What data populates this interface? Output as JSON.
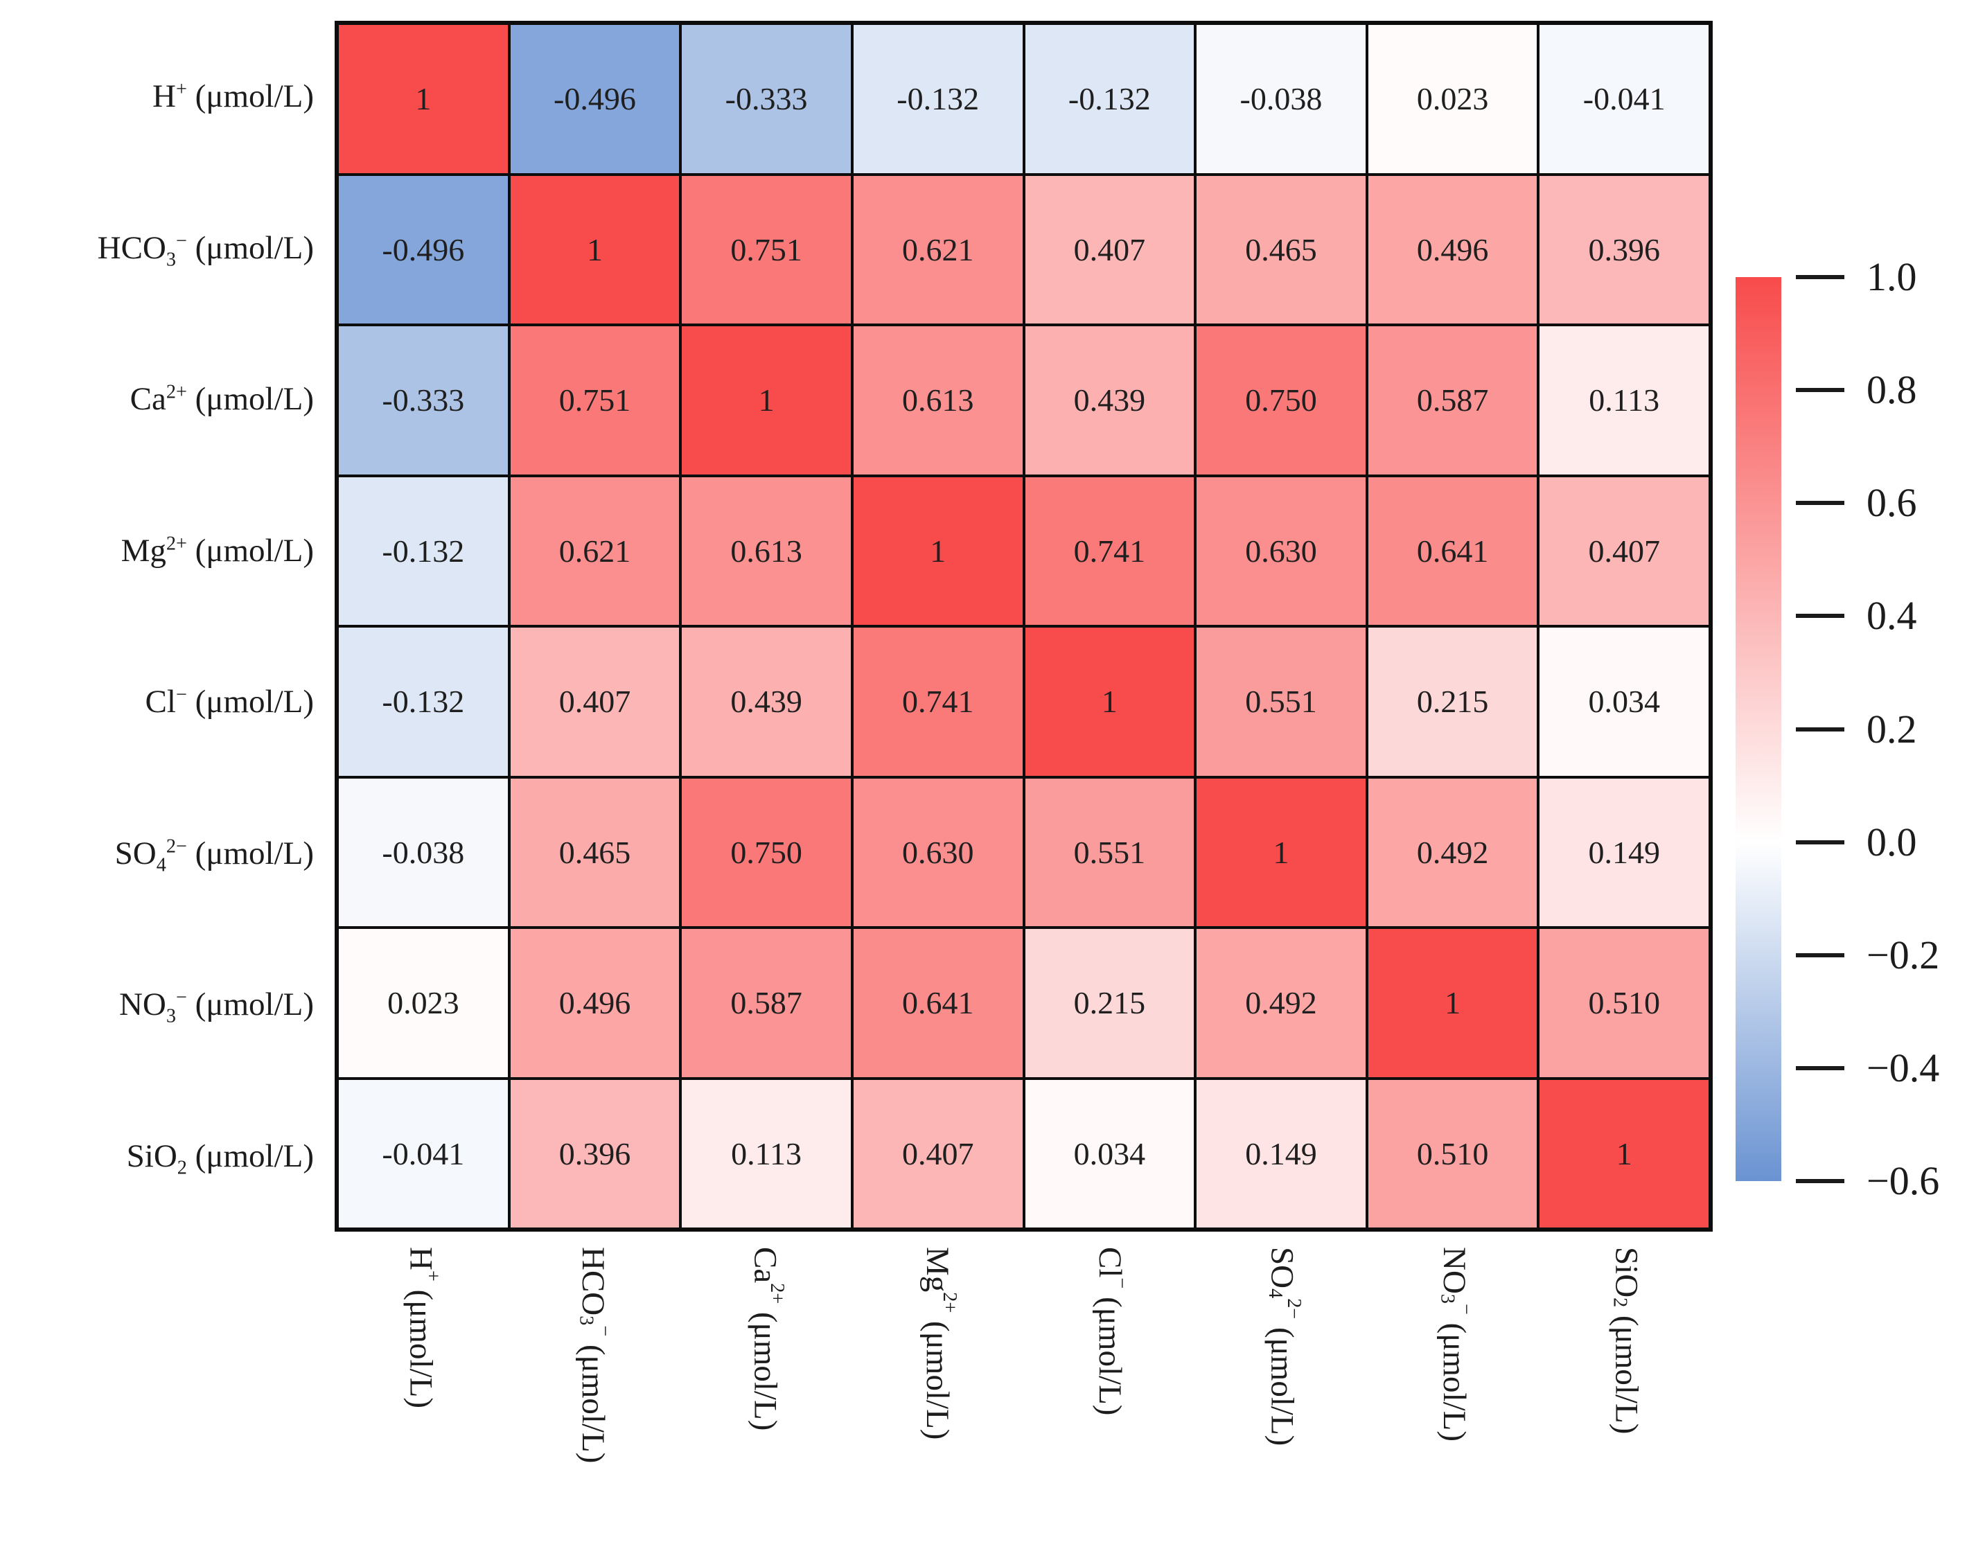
{
  "figure": {
    "kind": "correlation-heatmap",
    "background": "#ffffff",
    "grid_line_color": "#0d0d0d",
    "text_color": "#1c1c1c"
  },
  "chart_data": {
    "type": "heatmap",
    "title": "",
    "xlabel": "",
    "ylabel": "",
    "x_tick_rotation_deg": 90,
    "categories_plain": [
      "H+ (μmol/L)",
      "HCO3− (μmol/L)",
      "Ca2+ (μmol/L)",
      "Mg2+ (μmol/L)",
      "Cl− (μmol/L)",
      "SO42− (μmol/L)",
      "NO3− (μmol/L)",
      "SiO2 (μmol/L)"
    ],
    "categories_rich": [
      [
        {
          "t": "H"
        },
        {
          "t": "+",
          "sup": true
        },
        {
          "t": " (μmol/L)"
        }
      ],
      [
        {
          "t": "HCO"
        },
        {
          "t": "3",
          "sub": true
        },
        {
          "t": "−",
          "sup": true
        },
        {
          "t": " (μmol/L)"
        }
      ],
      [
        {
          "t": "Ca"
        },
        {
          "t": "2+",
          "sup": true
        },
        {
          "t": " (μmol/L)"
        }
      ],
      [
        {
          "t": "Mg"
        },
        {
          "t": "2+",
          "sup": true
        },
        {
          "t": " (μmol/L)"
        }
      ],
      [
        {
          "t": "Cl"
        },
        {
          "t": "−",
          "sup": true
        },
        {
          "t": " (μmol/L)"
        }
      ],
      [
        {
          "t": "SO"
        },
        {
          "t": "4",
          "sub": true
        },
        {
          "t": "2−",
          "sup": true
        },
        {
          "t": " (μmol/L)"
        }
      ],
      [
        {
          "t": "NO"
        },
        {
          "t": "3",
          "sub": true
        },
        {
          "t": "−",
          "sup": true
        },
        {
          "t": " (μmol/L)"
        }
      ],
      [
        {
          "t": "SiO"
        },
        {
          "t": "2",
          "sub": true
        },
        {
          "t": " (μmol/L)"
        }
      ]
    ],
    "matrix_display": [
      [
        "1",
        "-0.496",
        "-0.333",
        "-0.132",
        "-0.132",
        "-0.038",
        "0.023",
        "-0.041"
      ],
      [
        "-0.496",
        "1",
        "0.751",
        "0.621",
        "0.407",
        "0.465",
        "0.496",
        "0.396"
      ],
      [
        "-0.333",
        "0.751",
        "1",
        "0.613",
        "0.439",
        "0.750",
        "0.587",
        "0.113"
      ],
      [
        "-0.132",
        "0.621",
        "0.613",
        "1",
        "0.741",
        "0.630",
        "0.641",
        "0.407"
      ],
      [
        "-0.132",
        "0.407",
        "0.439",
        "0.741",
        "1",
        "0.551",
        "0.215",
        "0.034"
      ],
      [
        "-0.038",
        "0.465",
        "0.750",
        "0.630",
        "0.551",
        "1",
        "0.492",
        "0.149"
      ],
      [
        "0.023",
        "0.496",
        "0.587",
        "0.641",
        "0.215",
        "0.492",
        "1",
        "0.510"
      ],
      [
        "-0.041",
        "0.396",
        "0.113",
        "0.407",
        "0.034",
        "0.149",
        "0.510",
        "1"
      ]
    ],
    "values": [
      [
        1,
        -0.496,
        -0.333,
        -0.132,
        -0.132,
        -0.038,
        0.023,
        -0.041
      ],
      [
        -0.496,
        1,
        0.751,
        0.621,
        0.407,
        0.465,
        0.496,
        0.396
      ],
      [
        -0.333,
        0.751,
        1,
        0.613,
        0.439,
        0.75,
        0.587,
        0.113
      ],
      [
        -0.132,
        0.621,
        0.613,
        1,
        0.741,
        0.63,
        0.641,
        0.407
      ],
      [
        -0.132,
        0.407,
        0.439,
        0.741,
        1,
        0.551,
        0.215,
        0.034
      ],
      [
        -0.038,
        0.465,
        0.75,
        0.63,
        0.551,
        1,
        0.492,
        0.149
      ],
      [
        0.023,
        0.496,
        0.587,
        0.641,
        0.215,
        0.492,
        1,
        0.51
      ],
      [
        -0.041,
        0.396,
        0.113,
        0.407,
        0.034,
        0.149,
        0.51,
        1
      ]
    ],
    "colorbar": {
      "position": "right",
      "ticks": [
        "1.0",
        "0.8",
        "0.6",
        "0.4",
        "0.2",
        "0.0",
        "−0.2",
        "−0.4",
        "−0.6"
      ],
      "vmax": 1.0,
      "vmin": -0.6,
      "color_positive": "#f84b4b",
      "color_zero": "#ffffff",
      "color_negative": "#6a93d2"
    }
  }
}
